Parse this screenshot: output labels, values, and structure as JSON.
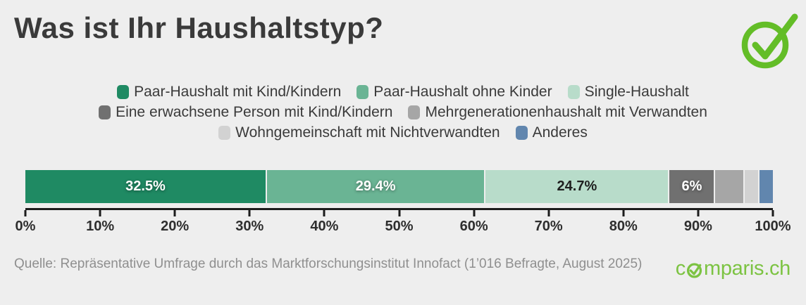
{
  "title": "Was ist Ihr Haushaltstyp?",
  "brand": {
    "logo_text_pre": "c",
    "logo_text_post": "mparis.ch",
    "logo_full": "comparis.ch",
    "logo_green": "#7cc342",
    "check_icon_green": "#63bd27"
  },
  "source_text": "Quelle: Repräsentative Umfrage durch das Marktforschungsinstitut Innofact (1’016 Befragte, August 2025)",
  "chart_data": {
    "type": "bar",
    "variant": "horizontal-stacked",
    "title": "Was ist Ihr Haushaltstyp?",
    "unit": "%",
    "series": [
      {
        "name": "Paar-Haushalt mit Kind/Kindern",
        "value": 32.5,
        "bar_label": "32.5%",
        "color": "#1f8a63",
        "label_color": "#ffffff"
      },
      {
        "name": "Paar-Haushalt ohne Kinder",
        "value": 29.4,
        "bar_label": "29.4%",
        "color": "#6ab494",
        "label_color": "#ffffff"
      },
      {
        "name": "Single-Haushalt",
        "value": 24.7,
        "bar_label": "24.7%",
        "color": "#b8dcca",
        "label_color": "#1f1f1f"
      },
      {
        "name": "Eine erwachsene Person mit Kind/Kindern",
        "value": 6,
        "bar_label": "6%",
        "color": "#707070",
        "label_color": "#ffffff"
      },
      {
        "name": "Mehrgenerationenhaushalt mit Verwandten",
        "value": 3.8,
        "bar_label": "",
        "color": "#a6a6a6",
        "label_color": "#ffffff"
      },
      {
        "name": "Wohngemeinschaft mit Nichtverwandten",
        "value": 1.8,
        "bar_label": "",
        "color": "#d2d2d2",
        "label_color": "#ffffff"
      },
      {
        "name": "Anderes",
        "value": 1.8,
        "bar_label": "",
        "color": "#6186ae",
        "label_color": "#ffffff"
      }
    ],
    "legend_rows": [
      [
        0,
        1,
        2
      ],
      [
        3,
        4
      ],
      [
        5,
        6
      ]
    ],
    "x_axis": {
      "range": [
        0,
        100
      ],
      "tick_step": 10,
      "tick_labels": [
        "0%",
        "10%",
        "20%",
        "30%",
        "40%",
        "50%",
        "60%",
        "70%",
        "80%",
        "90%",
        "100%"
      ]
    },
    "legend_position": "top-center",
    "grid": false
  }
}
